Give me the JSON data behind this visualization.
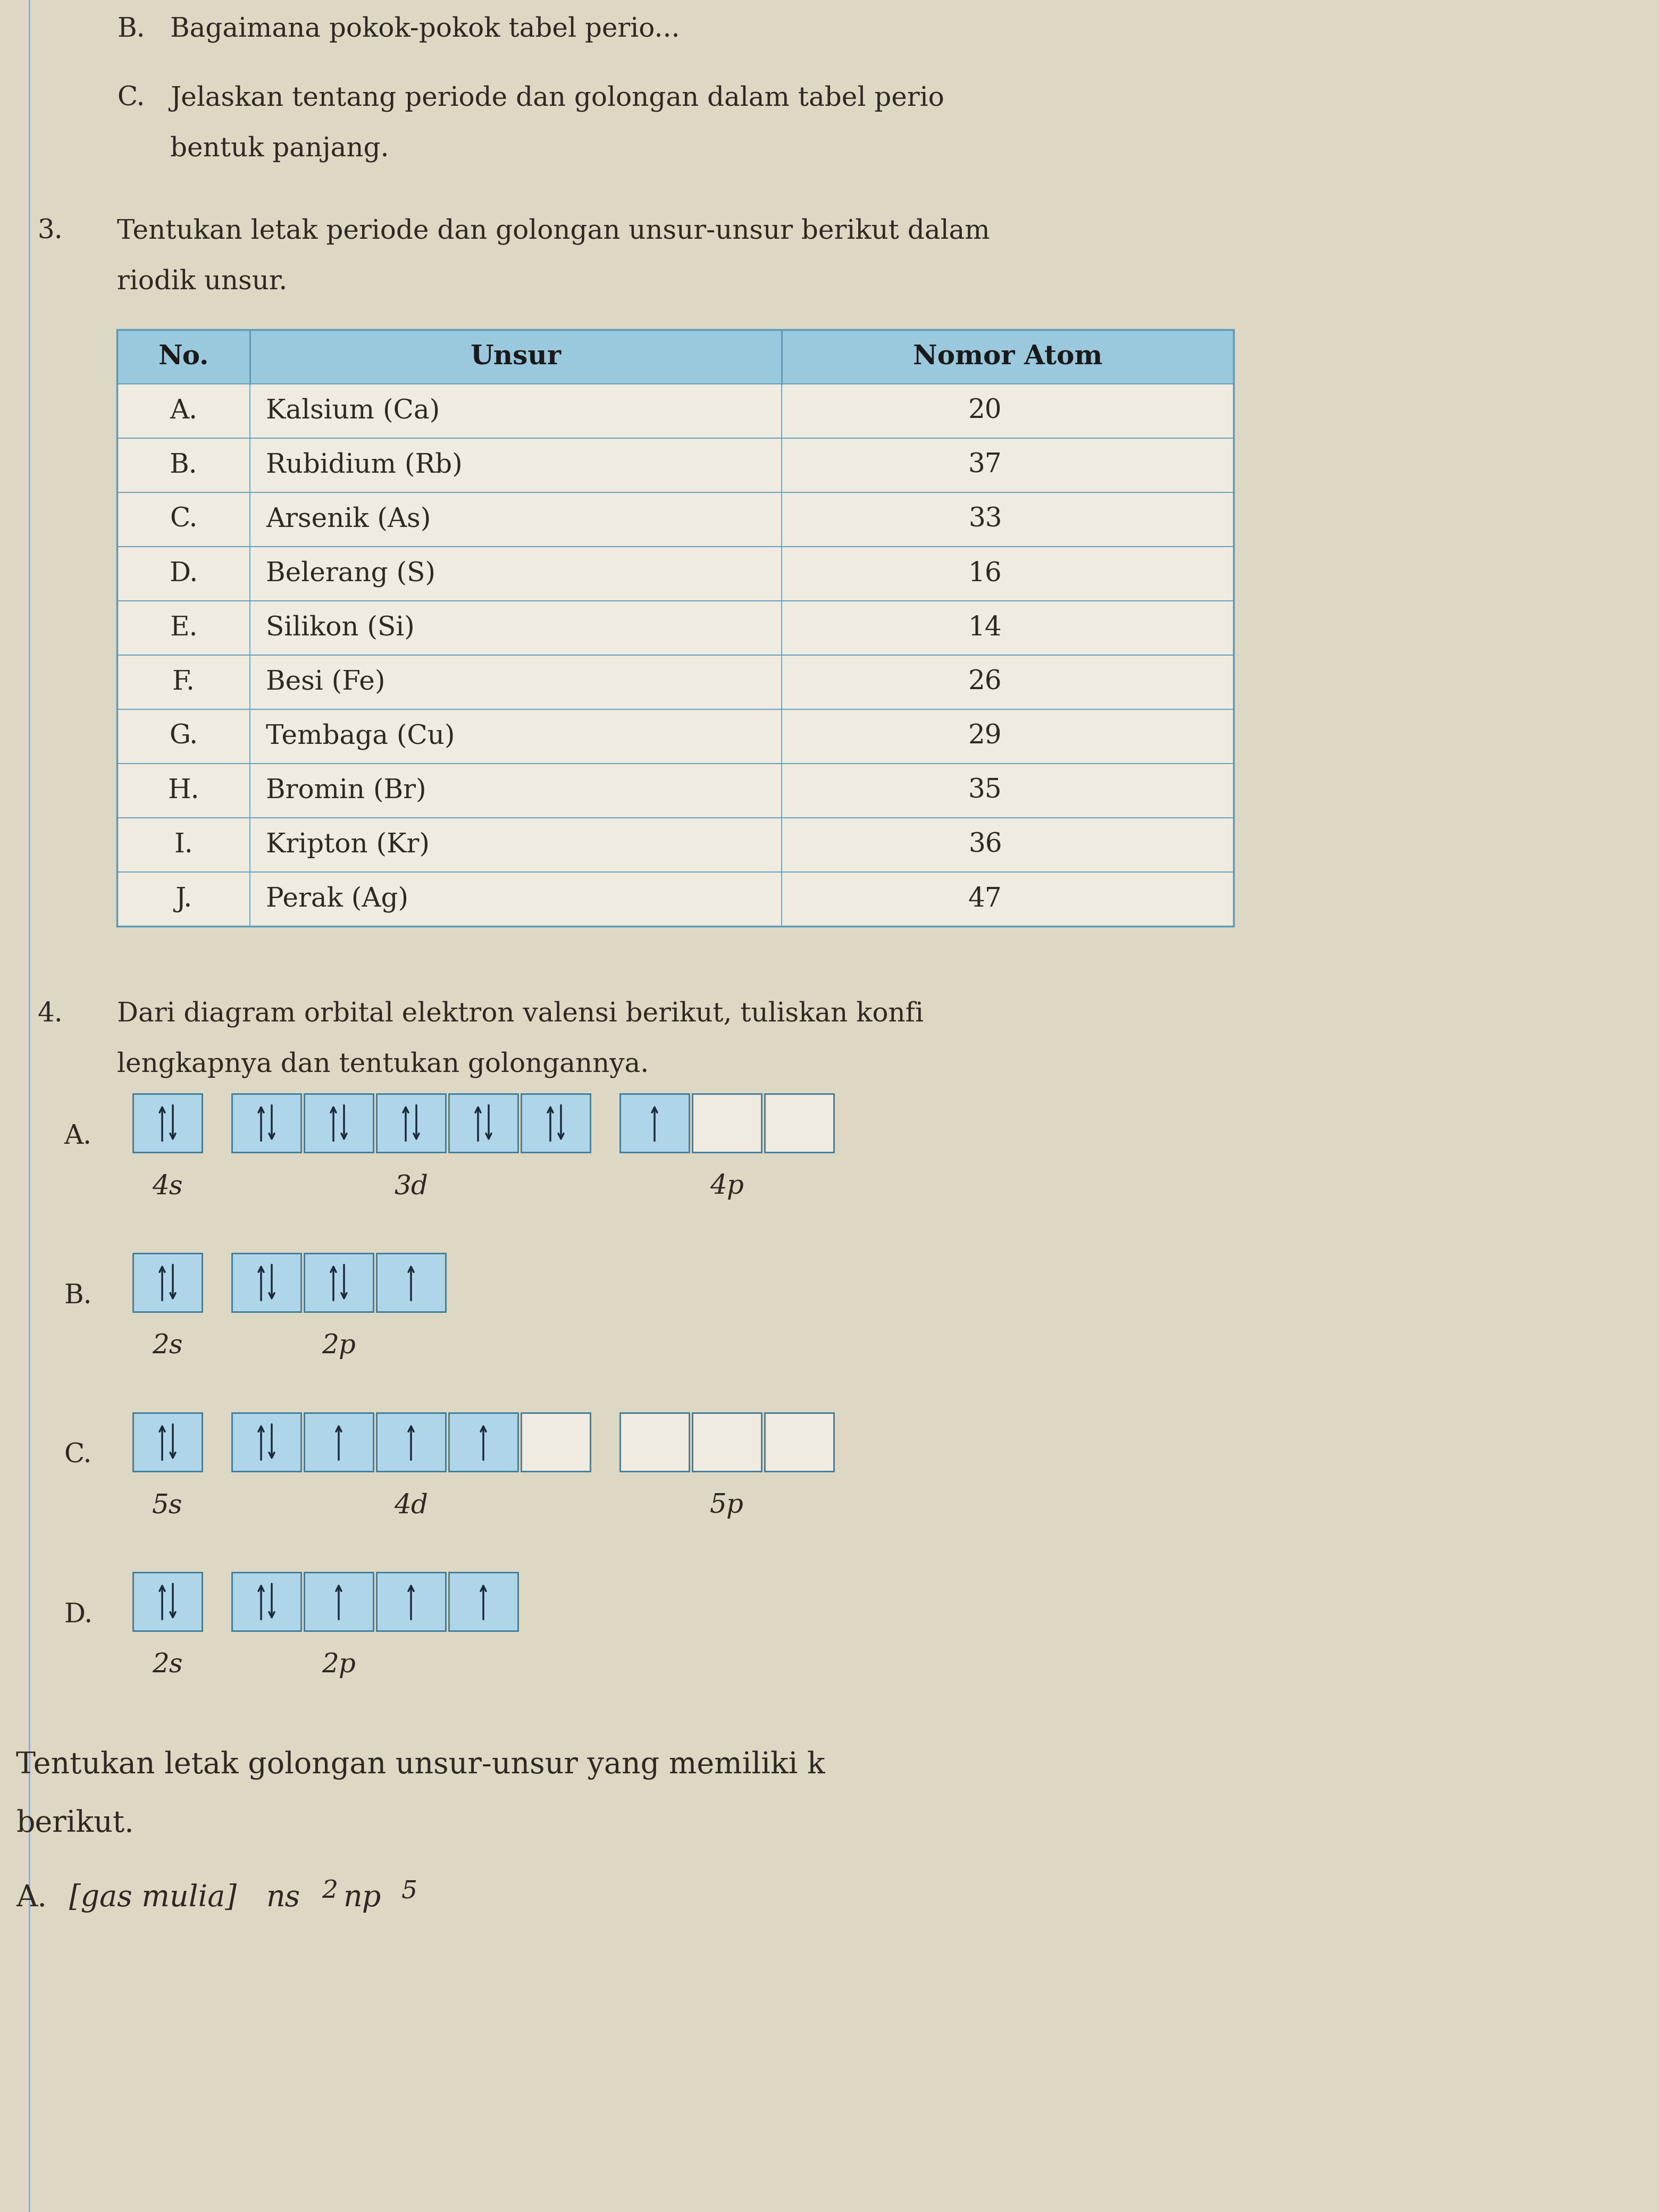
{
  "page_bg": "#ddd8c4",
  "text_color": "#2d2820",
  "blue_header": "#9ac8dc",
  "blue_cell": "#aed6e8",
  "blue_cell_light": "#b8dde8",
  "line_color": "#5a9ab8",
  "table_headers": [
    "No.",
    "Unsur",
    "Nomor Atom"
  ],
  "table_rows": [
    [
      "A.",
      "Kalsium (Ca)",
      "20"
    ],
    [
      "B.",
      "Rubidium (Rb)",
      "37"
    ],
    [
      "C.",
      "Arsenik (As)",
      "33"
    ],
    [
      "D.",
      "Belerang (S)",
      "16"
    ],
    [
      "E.",
      "Silikon (Si)",
      "14"
    ],
    [
      "F.",
      "Besi (Fe)",
      "26"
    ],
    [
      "G.",
      "Tembaga (Cu)",
      "29"
    ],
    [
      "H.",
      "Bromin (Br)",
      "35"
    ],
    [
      "I.",
      "Kripton (Kr)",
      "36"
    ],
    [
      "J.",
      "Perak (Ag)",
      "47"
    ]
  ]
}
